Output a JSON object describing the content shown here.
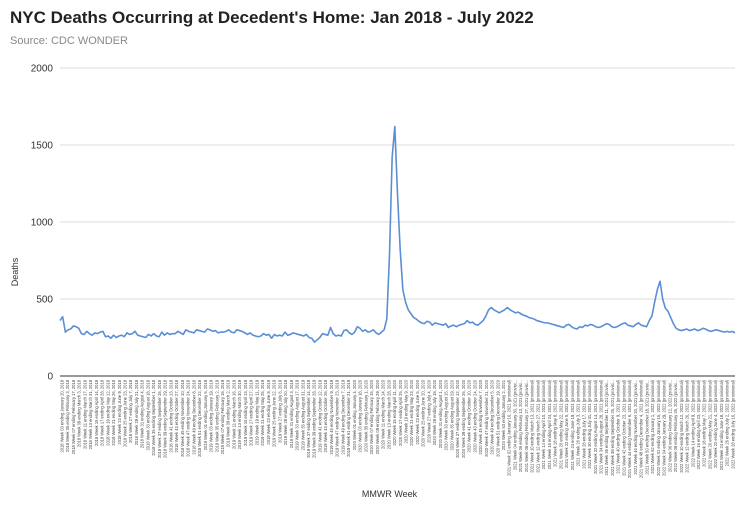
{
  "chart_data": {
    "type": "line",
    "title": "NYC Deaths Occurring at Decedent's Home: Jan 2018 - July 2022",
    "subtitle": "Source: CDC WONDER",
    "xlabel": "MMWR Week",
    "ylabel": "Deaths",
    "ylim": [
      0,
      2000
    ],
    "yticks": [
      0,
      500,
      1000,
      1500,
      2000
    ],
    "grid": true,
    "line_color": "#5b8fd4",
    "series": [
      {
        "values": [
          360,
          385,
          285,
          300,
          305,
          325,
          320,
          310,
          275,
          270,
          290,
          275,
          265,
          280,
          275,
          285,
          290,
          255,
          260,
          245,
          265,
          250,
          260,
          265,
          255,
          280,
          270,
          275,
          290,
          265,
          260,
          255,
          250,
          270,
          260,
          275,
          260,
          255,
          285,
          265,
          280,
          270,
          275,
          275,
          290,
          280,
          270,
          300,
          290,
          285,
          280,
          300,
          295,
          290,
          285,
          305,
          300,
          290,
          295,
          280,
          285,
          285,
          290,
          300,
          285,
          280,
          300,
          295,
          290,
          280,
          270,
          280,
          265,
          260,
          255,
          260,
          275,
          265,
          270,
          245,
          270,
          260,
          265,
          260,
          285,
          265,
          270,
          280,
          275,
          270,
          265,
          260,
          270,
          250,
          245,
          220,
          235,
          250,
          275,
          270,
          265,
          315,
          275,
          260,
          265,
          260,
          295,
          300,
          280,
          270,
          285,
          320,
          310,
          290,
          300,
          285,
          290,
          300,
          280,
          270,
          285,
          300,
          370,
          780,
          1420,
          1620,
          1180,
          820,
          560,
          480,
          430,
          405,
          380,
          370,
          355,
          345,
          340,
          355,
          350,
          330,
          345,
          340,
          335,
          330,
          340,
          315,
          325,
          330,
          320,
          330,
          335,
          340,
          360,
          345,
          350,
          335,
          330,
          345,
          360,
          390,
          430,
          445,
          430,
          420,
          410,
          420,
          430,
          445,
          430,
          420,
          410,
          415,
          405,
          395,
          390,
          380,
          375,
          370,
          360,
          355,
          350,
          345,
          345,
          340,
          335,
          330,
          325,
          320,
          315,
          330,
          335,
          320,
          310,
          305,
          320,
          315,
          330,
          325,
          335,
          330,
          320,
          315,
          320,
          330,
          340,
          335,
          320,
          315,
          320,
          330,
          340,
          345,
          330,
          325,
          320,
          335,
          345,
          330,
          325,
          320,
          360,
          390,
          480,
          560,
          615,
          500,
          440,
          420,
          380,
          340,
          310,
          300,
          295,
          300,
          305,
          295,
          300,
          305,
          295,
          300,
          310,
          305,
          295,
          290,
          295,
          300,
          295,
          290,
          285,
          290,
          285,
          290,
          280
        ]
      }
    ],
    "x_tick_labels": [
      "2018 Week 03 ending January 20, 2018",
      "2018 Week 05 ending February 3, 2018",
      "2018 Week 07 ending February 17, 2018",
      "2018 Week 09 ending March 3, 2018",
      "2018 Week 11 ending March 17, 2018",
      "2018 Week 13 ending March 31, 2018",
      "2018 Week 15 ending April 14, 2018",
      "2018 Week 17 ending April 28, 2018",
      "2018 Week 19 ending May 12, 2018",
      "2018 Week 21 ending May 26, 2018",
      "2018 Week 23 ending June 9, 2018",
      "2018 Week 25 ending June 23, 2018",
      "2018 Week 27 ending July 7, 2018",
      "2018 Week 29 ending July 21, 2018",
      "2018 Week 31 ending August 4, 2018",
      "2018 Week 33 ending August 18, 2018",
      "2018 Week 35 ending September 1, 2018",
      "2018 Week 37 ending September 15, 2018",
      "2018 Week 39 ending September 29, 2018",
      "2018 Week 41 ending October 13, 2018",
      "2018 Week 43 ending October 27, 2018",
      "2018 Week 45 ending November 10, 2018",
      "2018 Week 47 ending November 24, 2018",
      "2018 Week 49 ending December 8, 2018",
      "2018 Week 51 ending December 22, 2018",
      "2019 Week 01 ending January 5, 2019",
      "2019 Week 03 ending January 19, 2019",
      "2019 Week 05 ending February 2, 2019",
      "2019 Week 07 ending February 16, 2019",
      "2019 Week 09 ending March 2, 2019",
      "2019 Week 11 ending March 16, 2019",
      "2019 Week 13 ending March 30, 2019",
      "2019 Week 15 ending April 13, 2019",
      "2019 Week 17 ending April 27, 2019",
      "2019 Week 19 ending May 11, 2019",
      "2019 Week 21 ending May 25, 2019",
      "2019 Week 23 ending June 8, 2019",
      "2019 Week 25 ending June 22, 2019",
      "2019 Week 27 ending July 6, 2019",
      "2019 Week 29 ending July 20, 2019",
      "2019 Week 31 ending August 3, 2019",
      "2019 Week 33 ending August 17, 2019",
      "2019 Week 35 ending August 31, 2019",
      "2019 Week 37 ending September 14, 2019",
      "2019 Week 39 ending September 28, 2019",
      "2019 Week 41 ending October 12, 2019",
      "2019 Week 43 ending October 26, 2019",
      "2019 Week 45 ending November 9, 2019",
      "2019 Week 47 ending November 23, 2019",
      "2019 Week 49 ending December 7, 2019",
      "2019 Week 51 ending December 21, 2019",
      "2020 Week 01 ending January 4, 2020",
      "2020 Week 03 ending January 18, 2020",
      "2020 Week 05 ending February 1, 2020",
      "2020 Week 07 ending February 15, 2020",
      "2020 Week 09 ending February 29, 2020",
      "2020 Week 11 ending March 14, 2020",
      "2020 Week 13 ending March 28, 2020",
      "2020 Week 15 ending April 11, 2020",
      "2020 Week 17 ending April 25, 2020",
      "2020 Week 19 ending May 9, 2020",
      "2020 Week 21 ending May 23, 2020",
      "2020 Week 23 ending June 6, 2020",
      "2020 Week 25 ending June 20, 2020",
      "2020 Week 27 ending July 4, 2020",
      "2020 Week 29 ending July 18, 2020",
      "2020 Week 31 ending August 1, 2020",
      "2020 Week 33 ending August 15, 2020",
      "2020 Week 35 ending August 29, 2020",
      "2020 Week 37 ending September 12, 2020",
      "2020 Week 39 ending September 26, 2020",
      "2020 Week 41 ending October 10, 2020",
      "2020 Week 43 ending October 24, 2020",
      "2020 Week 45 ending November 7, 2020",
      "2020 Week 47 ending November 21, 2020",
      "2020 Week 49 ending December 5, 2020",
      "2020 Week 51 ending December 19, 2020",
      "2020 Week 53 ending January 2, 2021",
      "2021 Week 02 ending January 16, 2021 (provisional)",
      "2021 Week 04 ending January 30, 2021 (provisi...",
      "2021 Week 06 ending February 13, 2021 (provisi...",
      "2021 Week 08 ending February 27, 2021 (provisi...",
      "2021 Week 10 ending March 13, 2021 (provisional)",
      "2021 Week 12 ending March 27, 2021 (provisional)",
      "2021 Week 14 ending April 10, 2021 (provisional)",
      "2021 Week 16 ending April 24, 2021 (provisional)",
      "2021 Week 18 ending May 8, 2021 (provisional)",
      "2021 Week 20 ending May 22, 2021 (provisional)",
      "2021 Week 22 ending June 5, 2021 (provisional)",
      "2021 Week 24 ending June 19, 2021 (provisional)",
      "2021 Week 26 ending July 3, 2021 (provisional)",
      "2021 Week 28 ending July 17, 2021 (provisional)",
      "2021 Week 30 ending July 31, 2021 (provisional)",
      "2021 Week 32 ending August 14, 2021 (provisional)",
      "2021 Week 34 ending August 28, 2021 (provisional)",
      "2021 Week 36 ending September 11, 2021 (provisi...",
      "2021 Week 38 ending September 25, 2021 (provisi...",
      "2021 Week 40 ending October 9, 2021 (provisional)",
      "2021 Week 42 ending October 23, 2021 (provisional)",
      "2021 Week 44 ending November 6, 2021 (provisional)",
      "2021 Week 46 ending November 20, 2021 (provisi...",
      "2021 Week 48 ending December 4, 2021 (provisional)",
      "2021 Week 50 ending December 18, 2021 (provisi...",
      "2021 Week 52 ending January 1, 2022 (provisional)",
      "2022 Week 02 ending January 15, 2022 (provisional)",
      "2022 Week 04 ending January 29, 2022 (provisional)",
      "2022 Week 06 ending February 12, 2022 (provisi...",
      "2022 Week 08 ending February 26, 2022 (provisi...",
      "2022 Week 10 ending March 12, 2022 (provisional)",
      "2022 Week 12 ending March 26, 2022 (provisional)",
      "2022 Week 14 ending April 9, 2022 (provisional)",
      "2022 Week 16 ending April 23, 2022 (provisional)",
      "2022 Week 18 ending May 7, 2022 (provisional)",
      "2022 Week 20 ending May 21, 2022 (provisional)",
      "2022 Week 22 ending June 4, 2022 (provisional)",
      "2022 Week 24 ending June 18, 2022 (provisional)",
      "2022 Week 26 ending July 2, 2022 (provisional)",
      "2022 Week 28 ending July 16, 2022 (provisional)"
    ]
  }
}
